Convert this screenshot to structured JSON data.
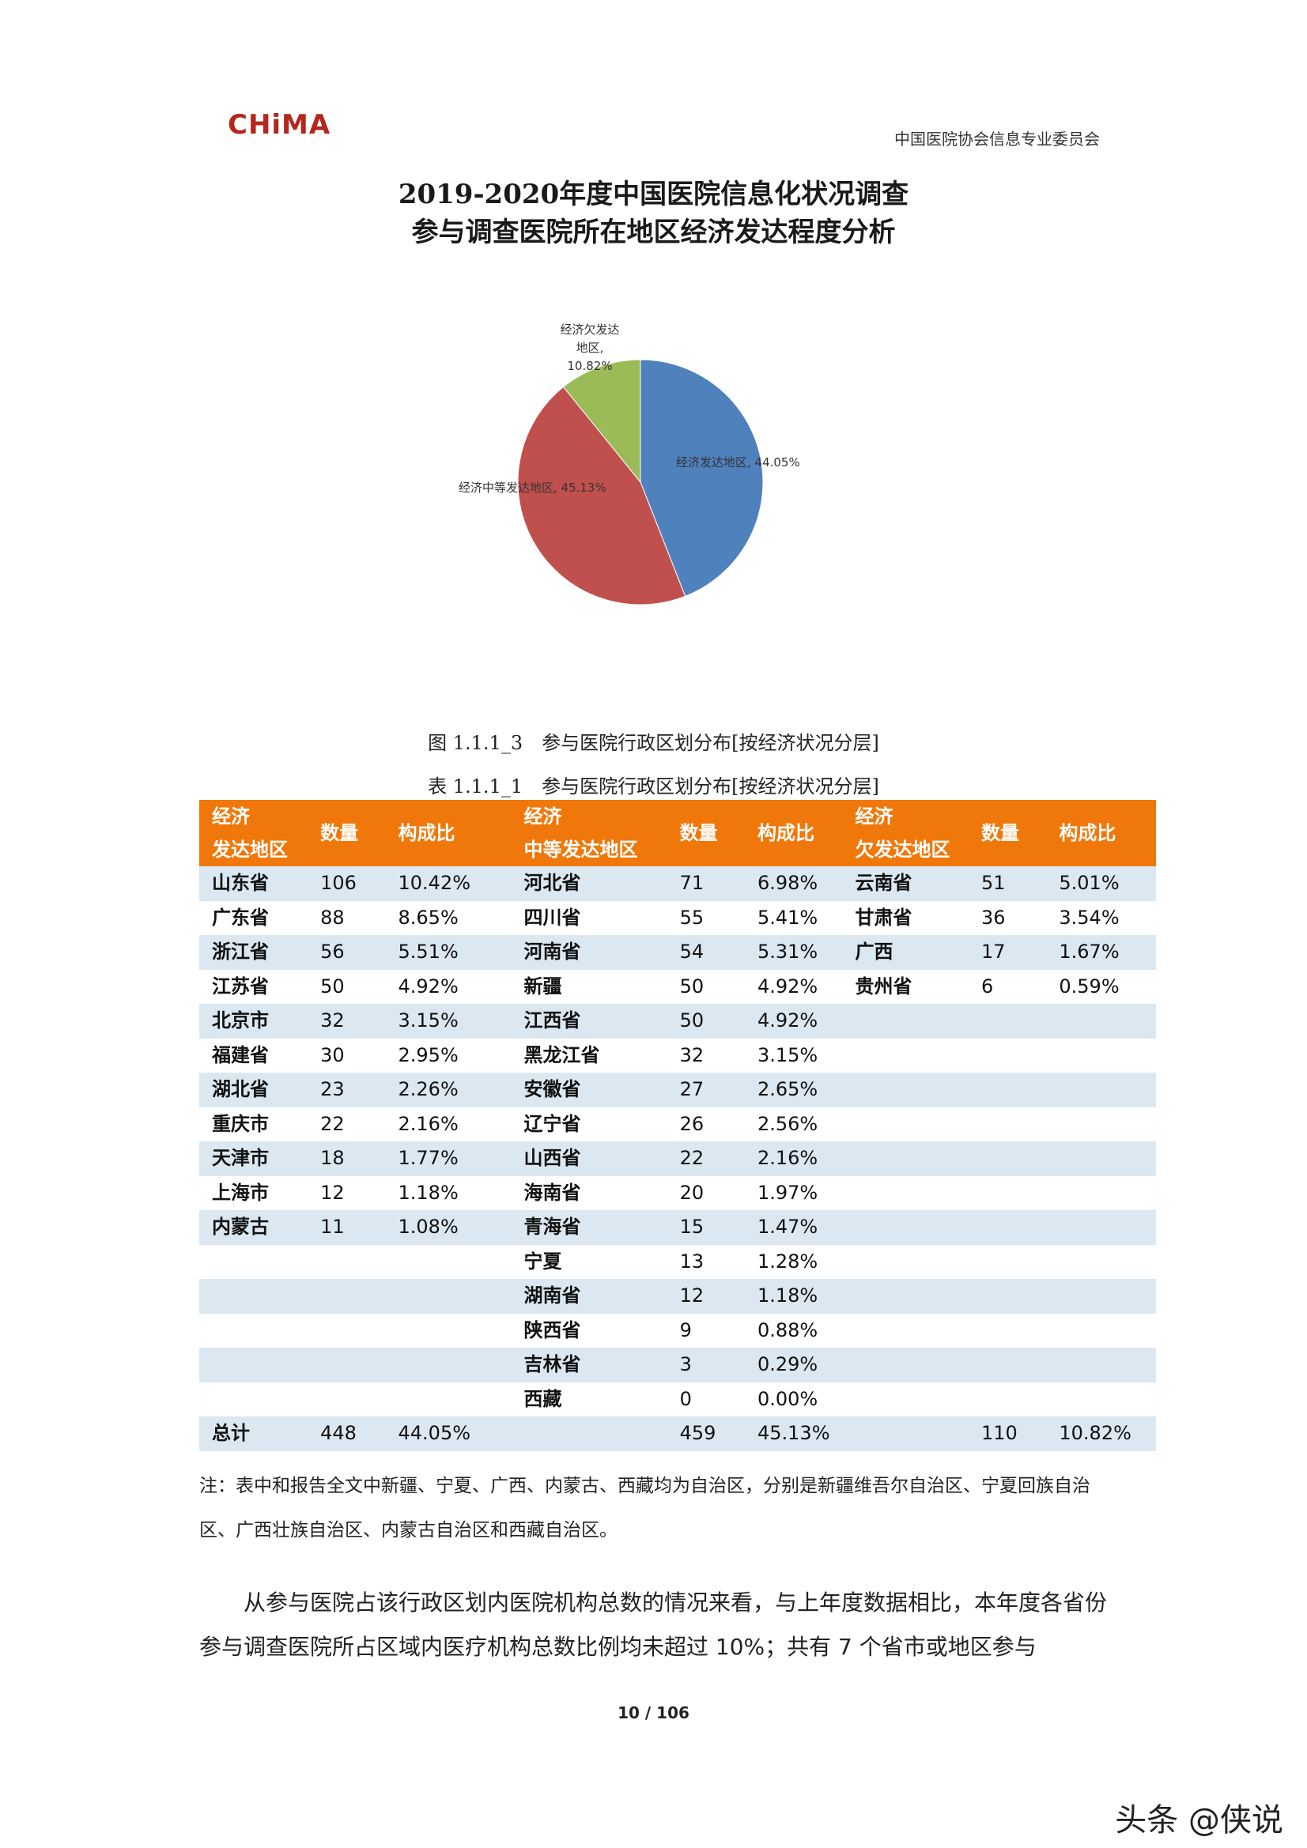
{
  "header": {
    "logo_text": "CHiMA",
    "organization": "中国医院协会信息专业委员会"
  },
  "title": {
    "line1": "2019-2020年度中国医院信息化状况调查",
    "line2": "参与调查医院所在地区经济发达程度分析"
  },
  "chart_data": {
    "type": "pie",
    "slices": [
      {
        "label": "经济发达地区, 44.05%",
        "value": 44.05,
        "color": "#4f81bd"
      },
      {
        "label": "经济中等发达地区, 45.13%",
        "value": 45.13,
        "color": "#c0504d"
      },
      {
        "label_lines": [
          "经济欠发达",
          "地区,",
          "10.82%"
        ],
        "value": 10.82,
        "color": "#9bbb59"
      }
    ]
  },
  "figure_caption": "图 1.1.1_3　参与医院行政区划分布[按经济状况分层]",
  "table_caption": "表 1.1.1_1　参与医院行政区划分布[按经济状况分层]",
  "table": {
    "headers": [
      {
        "line1": "经济",
        "line2": "发达地区"
      },
      {
        "line1": "数量",
        "line2": ""
      },
      {
        "line1": "构成比",
        "line2": ""
      },
      {
        "line1": "经济",
        "line2": "中等发达地区"
      },
      {
        "line1": "数量",
        "line2": ""
      },
      {
        "line1": "构成比",
        "line2": ""
      },
      {
        "line1": "经济",
        "line2": "欠发达地区"
      },
      {
        "line1": "数量",
        "line2": ""
      },
      {
        "line1": "构成比",
        "line2": ""
      }
    ],
    "rows": [
      [
        "山东省",
        "106",
        "10.42%",
        "河北省",
        "71",
        "6.98%",
        "云南省",
        "51",
        "5.01%"
      ],
      [
        "广东省",
        "88",
        "8.65%",
        "四川省",
        "55",
        "5.41%",
        "甘肃省",
        "36",
        "3.54%"
      ],
      [
        "浙江省",
        "56",
        "5.51%",
        "河南省",
        "54",
        "5.31%",
        "广西",
        "17",
        "1.67%"
      ],
      [
        "江苏省",
        "50",
        "4.92%",
        "新疆",
        "50",
        "4.92%",
        "贵州省",
        "6",
        "0.59%"
      ],
      [
        "北京市",
        "32",
        "3.15%",
        "江西省",
        "50",
        "4.92%",
        "",
        "",
        ""
      ],
      [
        "福建省",
        "30",
        "2.95%",
        "黑龙江省",
        "32",
        "3.15%",
        "",
        "",
        ""
      ],
      [
        "湖北省",
        "23",
        "2.26%",
        "安徽省",
        "27",
        "2.65%",
        "",
        "",
        ""
      ],
      [
        "重庆市",
        "22",
        "2.16%",
        "辽宁省",
        "26",
        "2.56%",
        "",
        "",
        ""
      ],
      [
        "天津市",
        "18",
        "1.77%",
        "山西省",
        "22",
        "2.16%",
        "",
        "",
        ""
      ],
      [
        "上海市",
        "12",
        "1.18%",
        "海南省",
        "20",
        "1.97%",
        "",
        "",
        ""
      ],
      [
        "内蒙古",
        "11",
        "1.08%",
        "青海省",
        "15",
        "1.47%",
        "",
        "",
        ""
      ],
      [
        "",
        "",
        "",
        "宁夏",
        "13",
        "1.28%",
        "",
        "",
        ""
      ],
      [
        "",
        "",
        "",
        "湖南省",
        "12",
        "1.18%",
        "",
        "",
        ""
      ],
      [
        "",
        "",
        "",
        "陕西省",
        "9",
        "0.88%",
        "",
        "",
        ""
      ],
      [
        "",
        "",
        "",
        "吉林省",
        "3",
        "0.29%",
        "",
        "",
        ""
      ],
      [
        "",
        "",
        "",
        "西藏",
        "0",
        "0.00%",
        "",
        "",
        ""
      ],
      [
        "总计",
        "448",
        "44.05%",
        "",
        "459",
        "45.13%",
        "",
        "110",
        "10.82%"
      ]
    ],
    "header_color": "#f0780b",
    "stripe_color": "#dbe8f1"
  },
  "note": "注：表中和报告全文中新疆、宁夏、广西、内蒙古、西藏均为自治区，分别是新疆维吾尔自治区、宁夏回族自治区、广西壮族自治区、内蒙古自治区和西藏自治区。",
  "paragraph": "从参与医院占该行政区划内医院机构总数的情况来看，与上年度数据相比，本年度各省份参与调查医院所占区域内医疗机构总数比例均未超过 10%；共有 7 个省市或地区参与",
  "page_number": "10 / 106",
  "watermark": "头条 @侠说"
}
